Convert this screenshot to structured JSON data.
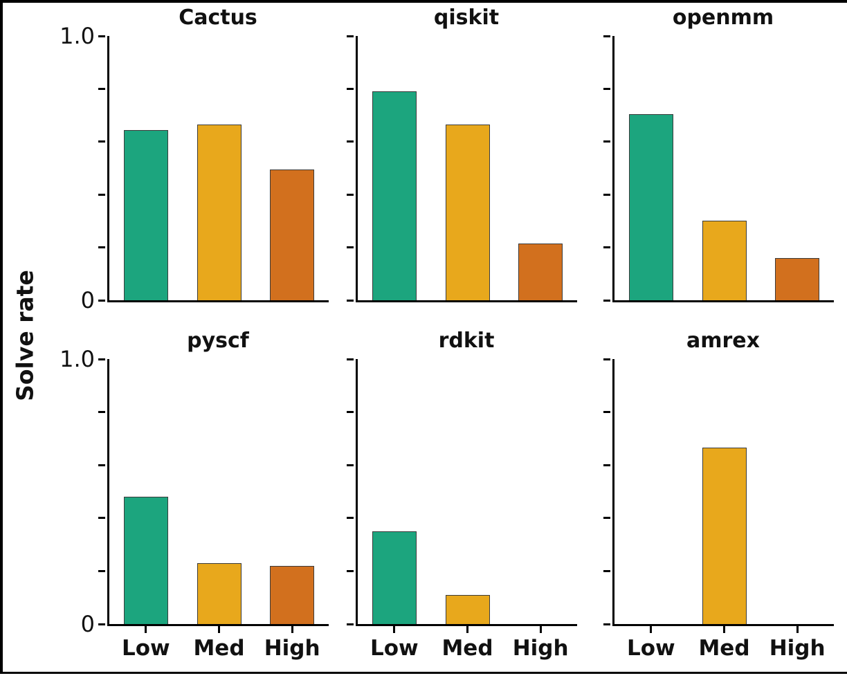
{
  "chart_data": {
    "type": "bar",
    "ylabel": "Solve rate",
    "categories": [
      "Low",
      "Med",
      "High"
    ],
    "bar_colors": [
      "#1ca57e",
      "#e8a81c",
      "#d2701e"
    ],
    "bar_edge_color": "#3a3a3a",
    "ylim": [
      0,
      1.0
    ],
    "yticks": [
      0,
      0.2,
      0.4,
      0.6,
      0.8,
      1.0
    ],
    "ytick_labels": [
      {
        "value": 1.0,
        "label": "1.0"
      },
      {
        "value": 0,
        "label": "0"
      }
    ],
    "grid": false,
    "legend": "none",
    "layout_hint": "2 rows x 3 cols, shared axes; y tick labels on first column only, x tick labels on bottom row only",
    "panels": [
      {
        "title": "Cactus",
        "values": [
          0.645,
          0.665,
          0.495
        ]
      },
      {
        "title": "qiskit",
        "values": [
          0.79,
          0.665,
          0.215
        ]
      },
      {
        "title": "openmm",
        "values": [
          0.705,
          0.3,
          0.16
        ]
      },
      {
        "title": "pyscf",
        "values": [
          0.48,
          0.23,
          0.22
        ]
      },
      {
        "title": "rdkit",
        "values": [
          0.35,
          0.11,
          0
        ]
      },
      {
        "title": "amrex",
        "values": [
          0,
          0.665,
          0
        ]
      }
    ]
  }
}
